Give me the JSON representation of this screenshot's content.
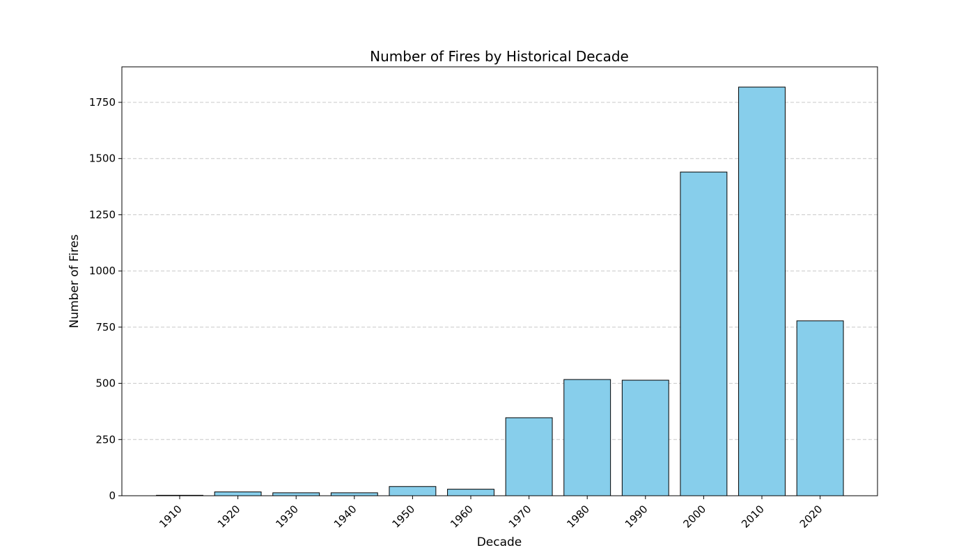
{
  "chart_data": {
    "type": "bar",
    "title": "Number of Fires by Historical Decade",
    "xlabel": "Decade",
    "ylabel": "Number of Fires",
    "categories": [
      "1910",
      "1920",
      "1930",
      "1940",
      "1950",
      "1960",
      "1970",
      "1980",
      "1990",
      "2000",
      "2010",
      "2020"
    ],
    "values": [
      2,
      17,
      13,
      13,
      41,
      29,
      347,
      517,
      514,
      1440,
      1818,
      778
    ],
    "ylim": [
      0,
      1908
    ],
    "yticks": [
      0,
      250,
      500,
      750,
      1000,
      1250,
      1500,
      1750
    ],
    "grid": "y-dashed",
    "x_tick_rotation": 45,
    "colors": {
      "bar_fill": "#87CEEB",
      "bar_edge": "#000000",
      "grid": "#c8c8c8",
      "axis": "#000000"
    }
  }
}
